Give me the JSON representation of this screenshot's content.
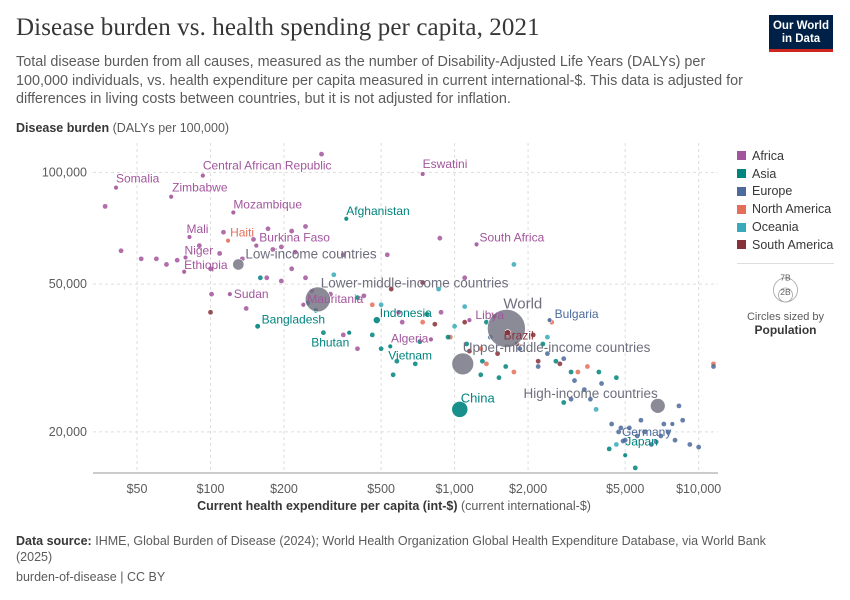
{
  "header": {
    "title": "Disease burden vs. health spending per capita, 2021",
    "subtitle": "Total disease burden from all causes, measured as the number of Disability-Adjusted Life Years (DALYs) per 100,000 individuals, vs. health expenditure per capita measured in current international-$. This data is adjusted for differences in living costs between countries, but it is not adjusted for inflation.",
    "logo_line1": "Our World",
    "logo_line2": "in Data"
  },
  "colors": {
    "Africa": "#a2559c",
    "Asia": "#00847e",
    "Europe": "#4c6a9c",
    "North America": "#e56e5a",
    "Oceania": "#38aaba",
    "South America": "#883039",
    "Aggregate": "#6e6e7d"
  },
  "legend": {
    "items": [
      "Africa",
      "Asia",
      "Europe",
      "North America",
      "Oceania",
      "South America"
    ],
    "size_max": "7B",
    "size_min": "2B",
    "size_caption": "Circles sized by",
    "size_caption_bold": "Population"
  },
  "footer": {
    "source_label": "Data source:",
    "source_text": "IHME, Global Burden of Disease (2024); World Health Organization Global Health Expenditure Database, via World Bank (2025)",
    "license": "burden-of-disease | CC BY"
  },
  "chart_data": {
    "type": "scatter",
    "x_scale": "log",
    "y_scale": "log",
    "xlim": [
      33,
      12000
    ],
    "ylim": [
      15500,
      120000
    ],
    "xlabel_bold": "Current health expenditure per capita (int-$)",
    "xlabel_rest": "(current international-$)",
    "ylabel_bold": "Disease burden",
    "ylabel_rest": "(DALYs per 100,000)",
    "x_ticks": [
      50,
      100,
      200,
      500,
      1000,
      2000,
      5000,
      10000
    ],
    "x_tick_labels": [
      "$50",
      "$100",
      "$200",
      "$500",
      "$1,000",
      "$2,000",
      "$5,000",
      "$10,000"
    ],
    "y_ticks": [
      20000,
      50000,
      100000
    ],
    "y_tick_labels": [
      "20,000",
      "50,000",
      "100,000"
    ],
    "grid": true,
    "legend_position": "right",
    "labeled_points": [
      {
        "label": "Somalia",
        "x": 41,
        "y": 91000,
        "group": "Africa",
        "pop": 0.017
      },
      {
        "label": "Zimbabwe",
        "x": 69,
        "y": 86000,
        "group": "Africa",
        "pop": 0.016
      },
      {
        "label": "Central African Republic",
        "x": 93,
        "y": 98000,
        "group": "Africa",
        "pop": 0.005
      },
      {
        "label": "Eswatini",
        "x": 740,
        "y": 99000,
        "group": "Africa",
        "pop": 0.0012
      },
      {
        "label": "Mozambique",
        "x": 124,
        "y": 78000,
        "group": "Africa",
        "pop": 0.032
      },
      {
        "label": "Afghanistan",
        "x": 360,
        "y": 75000,
        "group": "Asia",
        "pop": 0.04
      },
      {
        "label": "Mali",
        "x": 82,
        "y": 67000,
        "group": "Africa",
        "pop": 0.022
      },
      {
        "label": "Haiti",
        "x": 118,
        "y": 65500,
        "group": "North America",
        "pop": 0.011
      },
      {
        "label": "Burkina Faso",
        "x": 154,
        "y": 63500,
        "group": "Africa",
        "pop": 0.022
      },
      {
        "label": "South Africa",
        "x": 1230,
        "y": 64000,
        "group": "Africa",
        "pop": 0.06
      },
      {
        "label": "Niger",
        "x": 79,
        "y": 59000,
        "group": "Africa",
        "pop": 0.026
      },
      {
        "label": "Ethiopia",
        "x": 78,
        "y": 54000,
        "group": "Africa",
        "pop": 0.12
      },
      {
        "label": "Low-income countries",
        "x": 130,
        "y": 56500,
        "group": "Aggregate",
        "pop": 0.7
      },
      {
        "label": "Lower-middle-income countries",
        "x": 275,
        "y": 45500,
        "group": "Aggregate",
        "pop": 3.4
      },
      {
        "label": "Sudan",
        "x": 120,
        "y": 47000,
        "group": "Africa",
        "pop": 0.046
      },
      {
        "label": "Mauritania",
        "x": 240,
        "y": 44000,
        "group": "Africa",
        "pop": 0.0048
      },
      {
        "label": "Bangladesh",
        "x": 156,
        "y": 38500,
        "group": "Asia",
        "pop": 0.17
      },
      {
        "label": "Indonesia",
        "x": 480,
        "y": 40000,
        "group": "Asia",
        "pop": 0.27
      },
      {
        "label": "Bhutan",
        "x": 370,
        "y": 37000,
        "group": "Asia",
        "pop": 0.0008
      },
      {
        "label": "Algeria",
        "x": 800,
        "y": 35500,
        "group": "Africa",
        "pop": 0.045
      },
      {
        "label": "Vietnam",
        "x": 545,
        "y": 34000,
        "group": "Asia",
        "pop": 0.098
      },
      {
        "label": "Libya",
        "x": 1150,
        "y": 40000,
        "group": "Africa",
        "pop": 0.007
      },
      {
        "label": "World",
        "x": 1630,
        "y": 38000,
        "group": "Aggregate",
        "pop": 7.9
      },
      {
        "label": "Brazil",
        "x": 1650,
        "y": 37000,
        "group": "South America",
        "pop": 0.214
      },
      {
        "label": "Bulgaria",
        "x": 2450,
        "y": 40000,
        "group": "Europe",
        "pop": 0.0069
      },
      {
        "label": "Upper-middle-income countries",
        "x": 1080,
        "y": 30500,
        "group": "Aggregate",
        "pop": 2.6
      },
      {
        "label": "China",
        "x": 1050,
        "y": 23000,
        "group": "Asia",
        "pop": 1.41
      },
      {
        "label": "High-income countries",
        "x": 6800,
        "y": 23500,
        "group": "Aggregate",
        "pop": 1.2
      },
      {
        "label": "Germany",
        "x": 7800,
        "y": 21000,
        "group": "Europe",
        "pop": 0.083
      },
      {
        "label": "Japan",
        "x": 5000,
        "y": 17300,
        "group": "Asia",
        "pop": 0.125
      }
    ],
    "points": [
      {
        "x": 37,
        "y": 81000,
        "group": "Africa"
      },
      {
        "x": 43,
        "y": 61500,
        "group": "Africa"
      },
      {
        "x": 52,
        "y": 58500,
        "group": "Africa"
      },
      {
        "x": 60,
        "y": 58500,
        "group": "Africa"
      },
      {
        "x": 66,
        "y": 56500,
        "group": "Africa"
      },
      {
        "x": 73,
        "y": 58000,
        "group": "Africa"
      },
      {
        "x": 90,
        "y": 63500,
        "group": "Africa"
      },
      {
        "x": 100,
        "y": 55000,
        "group": "Africa"
      },
      {
        "x": 109,
        "y": 60500,
        "group": "Africa"
      },
      {
        "x": 113,
        "y": 69000,
        "group": "Africa"
      },
      {
        "x": 135,
        "y": 58500,
        "group": "Africa"
      },
      {
        "x": 150,
        "y": 66000,
        "group": "Africa"
      },
      {
        "x": 172,
        "y": 70500,
        "group": "Africa"
      },
      {
        "x": 180,
        "y": 62000,
        "group": "Africa"
      },
      {
        "x": 195,
        "y": 63000,
        "group": "Africa"
      },
      {
        "x": 215,
        "y": 69500,
        "group": "Africa"
      },
      {
        "x": 222,
        "y": 61000,
        "group": "Africa"
      },
      {
        "x": 245,
        "y": 71500,
        "group": "Africa"
      },
      {
        "x": 285,
        "y": 112000,
        "group": "Africa"
      },
      {
        "x": 170,
        "y": 52000,
        "group": "Africa"
      },
      {
        "x": 195,
        "y": 51000,
        "group": "Africa"
      },
      {
        "x": 215,
        "y": 55000,
        "group": "Africa"
      },
      {
        "x": 245,
        "y": 52000,
        "group": "Africa"
      },
      {
        "x": 260,
        "y": 48000,
        "group": "Africa"
      },
      {
        "x": 310,
        "y": 47000,
        "group": "Africa"
      },
      {
        "x": 350,
        "y": 60000,
        "group": "Africa"
      },
      {
        "x": 425,
        "y": 46500,
        "group": "Africa"
      },
      {
        "x": 530,
        "y": 60000,
        "group": "Africa"
      },
      {
        "x": 870,
        "y": 66500,
        "group": "Africa"
      },
      {
        "x": 1100,
        "y": 52000,
        "group": "Africa"
      },
      {
        "x": 590,
        "y": 42000,
        "group": "Africa"
      },
      {
        "x": 610,
        "y": 39500,
        "group": "Africa"
      },
      {
        "x": 880,
        "y": 42000,
        "group": "Africa"
      },
      {
        "x": 350,
        "y": 36500,
        "group": "Africa"
      },
      {
        "x": 400,
        "y": 33500,
        "group": "Africa"
      },
      {
        "x": 101,
        "y": 47000,
        "group": "Africa"
      },
      {
        "x": 140,
        "y": 43000,
        "group": "Africa"
      },
      {
        "x": 100,
        "y": 42000,
        "group": "South America"
      },
      {
        "x": 830,
        "y": 39000,
        "group": "South America"
      },
      {
        "x": 1100,
        "y": 39500,
        "group": "South America"
      },
      {
        "x": 1450,
        "y": 41000,
        "group": "South America"
      },
      {
        "x": 1800,
        "y": 34500,
        "group": "South America"
      },
      {
        "x": 2100,
        "y": 36500,
        "group": "South America"
      },
      {
        "x": 1500,
        "y": 32500,
        "group": "South America"
      },
      {
        "x": 2200,
        "y": 31000,
        "group": "South America"
      },
      {
        "x": 2700,
        "y": 30500,
        "group": "South America"
      },
      {
        "x": 1150,
        "y": 33000,
        "group": "South America"
      },
      {
        "x": 550,
        "y": 48500,
        "group": "South America"
      },
      {
        "x": 740,
        "y": 50500,
        "group": "South America"
      },
      {
        "x": 460,
        "y": 44000,
        "group": "North America"
      },
      {
        "x": 740,
        "y": 39500,
        "group": "North America"
      },
      {
        "x": 960,
        "y": 36000,
        "group": "North America"
      },
      {
        "x": 1280,
        "y": 33500,
        "group": "North America"
      },
      {
        "x": 1350,
        "y": 30500,
        "group": "North America"
      },
      {
        "x": 1750,
        "y": 29000,
        "group": "North America"
      },
      {
        "x": 2500,
        "y": 39500,
        "group": "North America"
      },
      {
        "x": 3200,
        "y": 29000,
        "group": "North America"
      },
      {
        "x": 11500,
        "y": 30500,
        "group": "North America"
      },
      {
        "x": 3500,
        "y": 30000,
        "group": "North America"
      },
      {
        "x": 250,
        "y": 44500,
        "group": "Asia"
      },
      {
        "x": 270,
        "y": 42500,
        "group": "Asia"
      },
      {
        "x": 290,
        "y": 37000,
        "group": "Asia"
      },
      {
        "x": 460,
        "y": 36500,
        "group": "Asia"
      },
      {
        "x": 500,
        "y": 33500,
        "group": "Asia"
      },
      {
        "x": 580,
        "y": 31000,
        "group": "Asia"
      },
      {
        "x": 560,
        "y": 28500,
        "group": "Asia"
      },
      {
        "x": 690,
        "y": 30500,
        "group": "Asia"
      },
      {
        "x": 720,
        "y": 35000,
        "group": "Asia"
      },
      {
        "x": 940,
        "y": 36000,
        "group": "Asia"
      },
      {
        "x": 1120,
        "y": 34500,
        "group": "Asia"
      },
      {
        "x": 1300,
        "y": 31000,
        "group": "Asia"
      },
      {
        "x": 1620,
        "y": 30000,
        "group": "Asia"
      },
      {
        "x": 2300,
        "y": 34500,
        "group": "Asia"
      },
      {
        "x": 2600,
        "y": 31000,
        "group": "Asia"
      },
      {
        "x": 3000,
        "y": 29000,
        "group": "Asia"
      },
      {
        "x": 1350,
        "y": 39500,
        "group": "Asia"
      },
      {
        "x": 770,
        "y": 41500,
        "group": "Asia"
      },
      {
        "x": 400,
        "y": 46000,
        "group": "Asia"
      },
      {
        "x": 160,
        "y": 52000,
        "group": "Asia"
      },
      {
        "x": 1520,
        "y": 28000,
        "group": "Asia"
      },
      {
        "x": 1280,
        "y": 28500,
        "group": "Asia"
      },
      {
        "x": 3900,
        "y": 29000,
        "group": "Asia"
      },
      {
        "x": 4600,
        "y": 28000,
        "group": "Asia"
      },
      {
        "x": 4300,
        "y": 18000,
        "group": "Asia"
      },
      {
        "x": 5500,
        "y": 16000,
        "group": "Asia"
      },
      {
        "x": 2800,
        "y": 24000,
        "group": "Asia"
      },
      {
        "x": 1400,
        "y": 36000,
        "group": "Europe"
      },
      {
        "x": 1850,
        "y": 33500,
        "group": "Europe"
      },
      {
        "x": 2400,
        "y": 32500,
        "group": "Europe"
      },
      {
        "x": 2800,
        "y": 31500,
        "group": "Europe"
      },
      {
        "x": 3100,
        "y": 27500,
        "group": "Europe"
      },
      {
        "x": 3400,
        "y": 26000,
        "group": "Europe"
      },
      {
        "x": 3000,
        "y": 24500,
        "group": "Europe"
      },
      {
        "x": 2200,
        "y": 30000,
        "group": "Europe"
      },
      {
        "x": 4000,
        "y": 27000,
        "group": "Europe"
      },
      {
        "x": 3600,
        "y": 24500,
        "group": "Europe"
      },
      {
        "x": 4400,
        "y": 21000,
        "group": "Europe"
      },
      {
        "x": 4700,
        "y": 20000,
        "group": "Europe"
      },
      {
        "x": 5200,
        "y": 20500,
        "group": "Europe"
      },
      {
        "x": 5600,
        "y": 19500,
        "group": "Europe"
      },
      {
        "x": 6000,
        "y": 20000,
        "group": "Europe"
      },
      {
        "x": 6400,
        "y": 18500,
        "group": "Europe"
      },
      {
        "x": 7000,
        "y": 19500,
        "group": "Europe"
      },
      {
        "x": 7500,
        "y": 20000,
        "group": "Europe"
      },
      {
        "x": 8000,
        "y": 19000,
        "group": "Europe"
      },
      {
        "x": 8600,
        "y": 21500,
        "group": "Europe"
      },
      {
        "x": 9200,
        "y": 18500,
        "group": "Europe"
      },
      {
        "x": 10000,
        "y": 18200,
        "group": "Europe"
      },
      {
        "x": 8300,
        "y": 23500,
        "group": "Europe"
      },
      {
        "x": 6700,
        "y": 18800,
        "group": "Europe"
      },
      {
        "x": 7200,
        "y": 21000,
        "group": "Europe"
      },
      {
        "x": 5000,
        "y": 19000,
        "group": "Europe"
      },
      {
        "x": 4900,
        "y": 18900,
        "group": "Europe"
      },
      {
        "x": 4800,
        "y": 20500,
        "group": "Europe"
      },
      {
        "x": 11500,
        "y": 30000,
        "group": "Europe"
      },
      {
        "x": 5800,
        "y": 21500,
        "group": "Europe"
      },
      {
        "x": 320,
        "y": 53000,
        "group": "Oceania"
      },
      {
        "x": 500,
        "y": 44000,
        "group": "Oceania"
      },
      {
        "x": 860,
        "y": 48500,
        "group": "Oceania"
      },
      {
        "x": 1000,
        "y": 38500,
        "group": "Oceania"
      },
      {
        "x": 1750,
        "y": 56500,
        "group": "Oceania"
      },
      {
        "x": 4600,
        "y": 18500,
        "group": "Oceania"
      },
      {
        "x": 2400,
        "y": 36000,
        "group": "Oceania"
      },
      {
        "x": 1100,
        "y": 43500,
        "group": "Oceania"
      },
      {
        "x": 3800,
        "y": 23000,
        "group": "Oceania"
      }
    ]
  }
}
